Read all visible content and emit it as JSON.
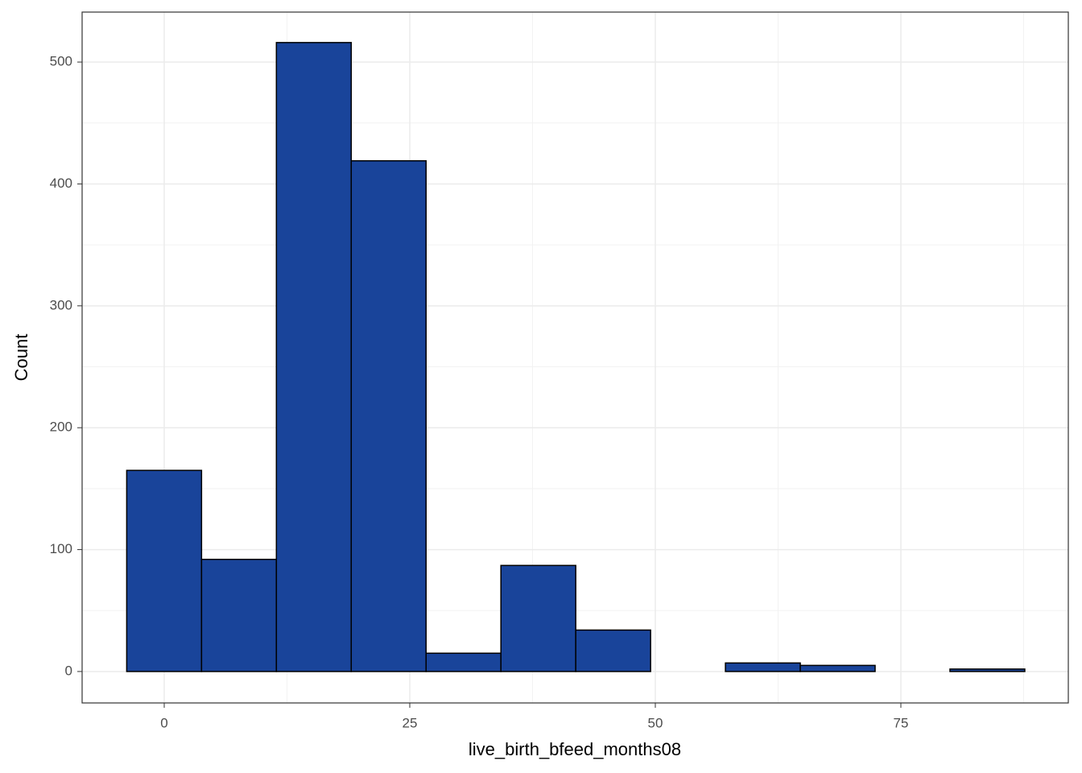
{
  "chart_data": {
    "type": "histogram",
    "x_label": "live_birth_bfeed_months08",
    "y_label": "Count",
    "bins": [
      -3.82,
      3.8,
      11.42,
      19.04,
      26.66,
      34.28,
      41.9,
      49.52,
      57.14,
      64.76,
      72.38,
      80.0,
      87.62
    ],
    "values": [
      165,
      92,
      516,
      419,
      15,
      87,
      34,
      0,
      7,
      5,
      0,
      2
    ],
    "color": "#19449a",
    "edge_color": "#000000",
    "xlim": [
      -8.36,
      92.05
    ],
    "xticks": [
      0,
      25,
      50,
      75
    ],
    "xminor": [
      12.5,
      37.5,
      62.5,
      87.5
    ],
    "ylim": [
      -25.8,
      541
    ],
    "yticks": [
      0,
      100,
      200,
      300,
      400,
      500
    ],
    "yminor": [
      50,
      150,
      250,
      350,
      450
    ],
    "grid": true
  }
}
